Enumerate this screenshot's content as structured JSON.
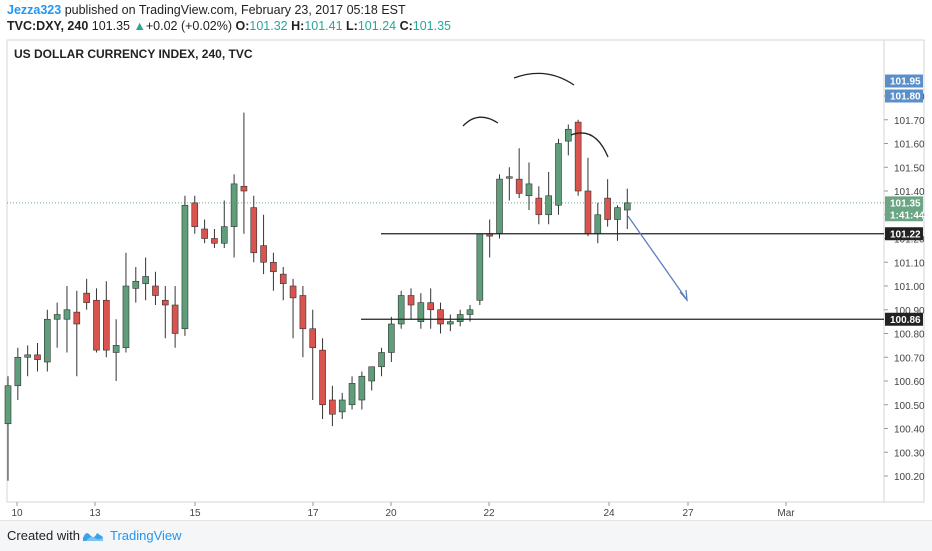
{
  "header": {
    "user": "Jezza323",
    "published": " published on TradingView.com, February 23, 2017 05:18 EST",
    "symbol": "TVC:DXY, 240",
    "last": "101.35",
    "change_arrow": "▲",
    "change": "+0.02 (+0.02%)",
    "o_label": "O:",
    "o": "101.32",
    "h_label": "H:",
    "h": "101.41",
    "l_label": "L:",
    "l": "101.24",
    "c_label": "C:",
    "c": "101.35"
  },
  "footer": {
    "created_with": "Created with",
    "brand": "TradingView"
  },
  "colors": {
    "up": "#5f9e7a",
    "down": "#d9534f",
    "accent": "#2196f3",
    "annotation": "#5b7fbf",
    "badge_blue": "#5b8fc9",
    "badge_green": "#6aa584"
  },
  "chart_data": {
    "type": "candlestick",
    "title": "US DOLLAR CURRENCY INDEX, 240, TVC",
    "y_ticks": [
      "101.80",
      "101.70",
      "101.60",
      "101.50",
      "101.40",
      "101.30",
      "101.20",
      "101.10",
      "101.00",
      "100.90",
      "100.80",
      "100.70",
      "100.60",
      "100.50",
      "100.40",
      "100.30",
      "100.20"
    ],
    "y_range": [
      100.15,
      101.86
    ],
    "x_ticks": [
      "10",
      "13",
      "15",
      "17",
      "20",
      "22",
      "24",
      "27",
      "Mar"
    ],
    "badges": [
      {
        "text": "101.95",
        "value": 101.95,
        "color": "#5b8fc9"
      },
      {
        "text": "101.80",
        "value": 101.8,
        "color": "#5b8fc9"
      },
      {
        "text": "101.35",
        "value": 101.35,
        "color": "#6aa584"
      },
      {
        "text": "1:41:44",
        "value": 101.3,
        "color": "#6aa584"
      },
      {
        "text": "101.22",
        "value": 101.22,
        "color": "#222222"
      },
      {
        "text": "100.86",
        "value": 100.86,
        "color": "#222222"
      }
    ],
    "levels": [
      101.22,
      100.86
    ],
    "last_price": 101.35,
    "candles": [
      {
        "o": 100.42,
        "h": 100.62,
        "l": 100.18,
        "c": 100.58
      },
      {
        "o": 100.58,
        "h": 100.74,
        "l": 100.52,
        "c": 100.7
      },
      {
        "o": 100.7,
        "h": 100.75,
        "l": 100.62,
        "c": 100.71
      },
      {
        "o": 100.71,
        "h": 100.76,
        "l": 100.64,
        "c": 100.69
      },
      {
        "o": 100.68,
        "h": 100.9,
        "l": 100.64,
        "c": 100.86
      },
      {
        "o": 100.86,
        "h": 100.93,
        "l": 100.74,
        "c": 100.88
      },
      {
        "o": 100.86,
        "h": 101.0,
        "l": 100.72,
        "c": 100.9
      },
      {
        "o": 100.89,
        "h": 100.98,
        "l": 100.62,
        "c": 100.84
      },
      {
        "o": 100.97,
        "h": 101.03,
        "l": 100.9,
        "c": 100.93
      },
      {
        "o": 100.94,
        "h": 100.99,
        "l": 100.72,
        "c": 100.73
      },
      {
        "o": 100.94,
        "h": 101.02,
        "l": 100.7,
        "c": 100.73
      },
      {
        "o": 100.72,
        "h": 100.86,
        "l": 100.6,
        "c": 100.75
      },
      {
        "o": 100.74,
        "h": 101.14,
        "l": 100.72,
        "c": 101.0
      },
      {
        "o": 100.99,
        "h": 101.08,
        "l": 100.93,
        "c": 101.02
      },
      {
        "o": 101.01,
        "h": 101.12,
        "l": 100.94,
        "c": 101.04
      },
      {
        "o": 101.0,
        "h": 101.06,
        "l": 100.92,
        "c": 100.96
      },
      {
        "o": 100.94,
        "h": 101.0,
        "l": 100.78,
        "c": 100.92
      },
      {
        "o": 100.92,
        "h": 101.0,
        "l": 100.74,
        "c": 100.8
      },
      {
        "o": 100.82,
        "h": 101.38,
        "l": 100.79,
        "c": 101.34
      },
      {
        "o": 101.35,
        "h": 101.38,
        "l": 101.22,
        "c": 101.25
      },
      {
        "o": 101.24,
        "h": 101.28,
        "l": 101.18,
        "c": 101.2
      },
      {
        "o": 101.2,
        "h": 101.24,
        "l": 101.16,
        "c": 101.18
      },
      {
        "o": 101.18,
        "h": 101.36,
        "l": 101.16,
        "c": 101.25
      },
      {
        "o": 101.25,
        "h": 101.47,
        "l": 101.12,
        "c": 101.43
      },
      {
        "o": 101.42,
        "h": 101.73,
        "l": 101.22,
        "c": 101.4
      },
      {
        "o": 101.33,
        "h": 101.38,
        "l": 101.1,
        "c": 101.14
      },
      {
        "o": 101.17,
        "h": 101.3,
        "l": 101.05,
        "c": 101.1
      },
      {
        "o": 101.1,
        "h": 101.14,
        "l": 100.98,
        "c": 101.06
      },
      {
        "o": 101.05,
        "h": 101.08,
        "l": 100.94,
        "c": 101.01
      },
      {
        "o": 101.0,
        "h": 101.03,
        "l": 100.78,
        "c": 100.95
      },
      {
        "o": 100.96,
        "h": 101.0,
        "l": 100.7,
        "c": 100.82
      },
      {
        "o": 100.82,
        "h": 100.9,
        "l": 100.52,
        "c": 100.74
      },
      {
        "o": 100.73,
        "h": 100.78,
        "l": 100.44,
        "c": 100.5
      },
      {
        "o": 100.52,
        "h": 100.58,
        "l": 100.41,
        "c": 100.46
      },
      {
        "o": 100.47,
        "h": 100.55,
        "l": 100.44,
        "c": 100.52
      },
      {
        "o": 100.5,
        "h": 100.62,
        "l": 100.48,
        "c": 100.59
      },
      {
        "o": 100.52,
        "h": 100.64,
        "l": 100.48,
        "c": 100.62
      },
      {
        "o": 100.6,
        "h": 100.66,
        "l": 100.56,
        "c": 100.66
      },
      {
        "o": 100.66,
        "h": 100.74,
        "l": 100.62,
        "c": 100.72
      },
      {
        "o": 100.72,
        "h": 100.87,
        "l": 100.68,
        "c": 100.84
      },
      {
        "o": 100.84,
        "h": 100.98,
        "l": 100.82,
        "c": 100.96
      },
      {
        "o": 100.96,
        "h": 100.99,
        "l": 100.86,
        "c": 100.92
      },
      {
        "o": 100.85,
        "h": 100.97,
        "l": 100.82,
        "c": 100.93
      },
      {
        "o": 100.93,
        "h": 100.99,
        "l": 100.82,
        "c": 100.9
      },
      {
        "o": 100.9,
        "h": 100.93,
        "l": 100.8,
        "c": 100.84
      },
      {
        "o": 100.84,
        "h": 100.88,
        "l": 100.81,
        "c": 100.85
      },
      {
        "o": 100.85,
        "h": 100.9,
        "l": 100.83,
        "c": 100.88
      },
      {
        "o": 100.88,
        "h": 100.92,
        "l": 100.85,
        "c": 100.9
      },
      {
        "o": 100.94,
        "h": 101.22,
        "l": 100.92,
        "c": 101.22
      },
      {
        "o": 101.22,
        "h": 101.28,
        "l": 101.12,
        "c": 101.21
      },
      {
        "o": 101.22,
        "h": 101.47,
        "l": 101.2,
        "c": 101.45
      },
      {
        "o": 101.46,
        "h": 101.5,
        "l": 101.36,
        "c": 101.46
      },
      {
        "o": 101.45,
        "h": 101.58,
        "l": 101.37,
        "c": 101.39
      },
      {
        "o": 101.38,
        "h": 101.52,
        "l": 101.32,
        "c": 101.43
      },
      {
        "o": 101.37,
        "h": 101.42,
        "l": 101.26,
        "c": 101.3
      },
      {
        "o": 101.3,
        "h": 101.48,
        "l": 101.26,
        "c": 101.38
      },
      {
        "o": 101.34,
        "h": 101.62,
        "l": 101.3,
        "c": 101.6
      },
      {
        "o": 101.61,
        "h": 101.68,
        "l": 101.55,
        "c": 101.66
      },
      {
        "o": 101.69,
        "h": 101.7,
        "l": 101.38,
        "c": 101.4
      },
      {
        "o": 101.4,
        "h": 101.54,
        "l": 101.21,
        "c": 101.22
      },
      {
        "o": 101.22,
        "h": 101.35,
        "l": 101.18,
        "c": 101.3
      },
      {
        "o": 101.37,
        "h": 101.45,
        "l": 101.25,
        "c": 101.28
      },
      {
        "o": 101.28,
        "h": 101.34,
        "l": 101.19,
        "c": 101.33
      },
      {
        "o": 101.32,
        "h": 101.41,
        "l": 101.24,
        "c": 101.35
      }
    ]
  }
}
